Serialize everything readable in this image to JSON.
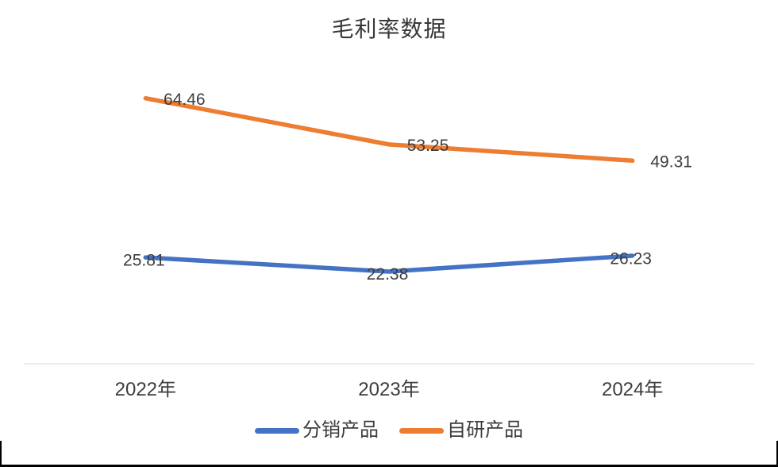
{
  "chart_data": {
    "type": "line",
    "title": "毛利率数据",
    "categories": [
      "2022年",
      "2023年",
      "2024年"
    ],
    "series": [
      {
        "name": "分销产品",
        "color": "#4472C4",
        "values": [
          25.81,
          22.38,
          26.23
        ],
        "label_position": "center"
      },
      {
        "name": "自研产品",
        "color": "#ED7D31",
        "values": [
          64.46,
          53.25,
          49.31
        ],
        "label_position": "right"
      }
    ],
    "ylim": [
      0,
      70
    ],
    "grid": false,
    "data_labels": true,
    "legend_position": "bottom",
    "axis_line_color": "#D9D9D9",
    "text_color": "#3d3d3d"
  }
}
